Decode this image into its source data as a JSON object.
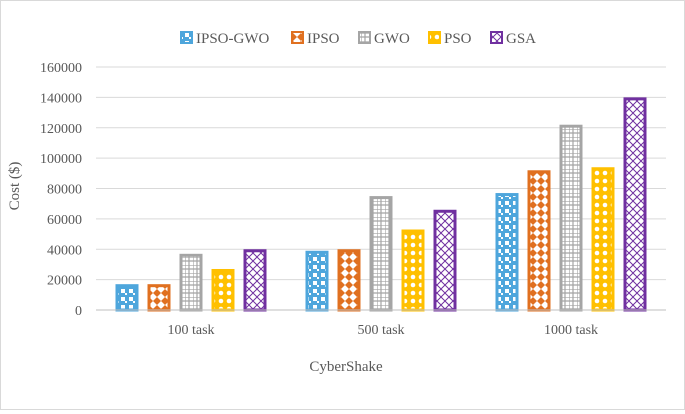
{
  "chart_data": {
    "type": "bar",
    "title": "",
    "xlabel": "CyberShake",
    "ylabel": "Cost ($)",
    "categories": [
      "100 task",
      "500 task",
      "1000 task"
    ],
    "ylim": [
      0,
      160000
    ],
    "yticks": [
      0,
      20000,
      40000,
      60000,
      80000,
      100000,
      120000,
      140000,
      160000
    ],
    "ytick_labels": [
      "0",
      "20000",
      "40000",
      "60000",
      "80000",
      "100000",
      "120000",
      "140000",
      "160000"
    ],
    "grid": "horizontal",
    "legend_position": "top",
    "series": [
      {
        "name": "IPSO-GWO",
        "values": [
          17000,
          39000,
          77000
        ],
        "color": "#4ea6dc",
        "pattern": "checker"
      },
      {
        "name": "IPSO",
        "values": [
          17000,
          40000,
          92000
        ],
        "color": "#e07020",
        "pattern": "diamond"
      },
      {
        "name": "GWO",
        "values": [
          37000,
          75000,
          122000
        ],
        "color": "#a5a5a5",
        "pattern": "grid"
      },
      {
        "name": "PSO",
        "values": [
          27000,
          53000,
          94000
        ],
        "color": "#ffc000",
        "pattern": "circles"
      },
      {
        "name": "GSA",
        "values": [
          40000,
          66000,
          140000
        ],
        "color": "#7030a0",
        "pattern": "crosshatch"
      }
    ]
  }
}
